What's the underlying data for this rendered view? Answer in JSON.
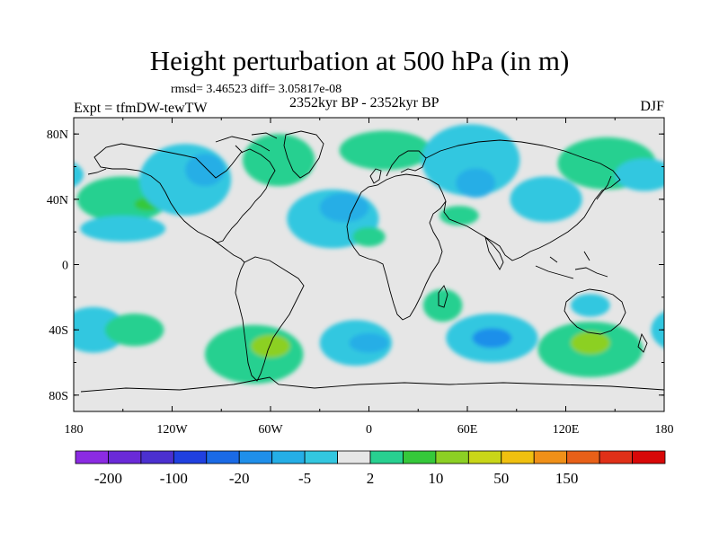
{
  "title": "Height perturbation at 500 hPa (in m)",
  "stats": "rmsd= 3.46523 diff= 3.05817e-08",
  "left_label": "Expt = tfmDW-tewTW",
  "center_label": "2352kyr BP - 2352kyr BP",
  "right_label": "DJF",
  "map": {
    "lat_ticks": [
      {
        "value": 80,
        "label": "80N"
      },
      {
        "value": 40,
        "label": "40N"
      },
      {
        "value": 0,
        "label": "0"
      },
      {
        "value": -40,
        "label": "40S"
      },
      {
        "value": -80,
        "label": "80S"
      }
    ],
    "lon_ticks": [
      {
        "value": -180,
        "label": "180"
      },
      {
        "value": -120,
        "label": "120W"
      },
      {
        "value": -60,
        "label": "60W"
      },
      {
        "value": 0,
        "label": "0"
      },
      {
        "value": 60,
        "label": "60E"
      },
      {
        "value": 120,
        "label": "120E"
      },
      {
        "value": 180,
        "label": "180"
      }
    ],
    "lon_range": [
      -180,
      180
    ],
    "lat_range": [
      -90,
      90
    ],
    "background_color": "#e6e6e6",
    "anomalies": [
      {
        "lon": -150,
        "lat": 40,
        "value": 9,
        "rx": 28,
        "ry": 14
      },
      {
        "lon": -135,
        "lat": 37,
        "value": 25,
        "rx": 8,
        "ry": 4
      },
      {
        "lon": -150,
        "lat": 22,
        "value": -6,
        "rx": 26,
        "ry": 8
      },
      {
        "lon": -112,
        "lat": 52,
        "value": -12,
        "rx": 28,
        "ry": 22
      },
      {
        "lon": -100,
        "lat": 58,
        "value": -25,
        "rx": 12,
        "ry": 10
      },
      {
        "lon": -55,
        "lat": 64,
        "value": 8,
        "rx": 22,
        "ry": 16
      },
      {
        "lon": -22,
        "lat": 28,
        "value": -8,
        "rx": 28,
        "ry": 18
      },
      {
        "lon": -15,
        "lat": 35,
        "value": -22,
        "rx": 15,
        "ry": 9
      },
      {
        "lon": 10,
        "lat": 70,
        "value": 7,
        "rx": 28,
        "ry": 12
      },
      {
        "lon": 62,
        "lat": 64,
        "value": -10,
        "rx": 30,
        "ry": 22
      },
      {
        "lon": 65,
        "lat": 50,
        "value": -25,
        "rx": 12,
        "ry": 9
      },
      {
        "lon": 0,
        "lat": 17,
        "value": 6,
        "rx": 10,
        "ry": 6
      },
      {
        "lon": 55,
        "lat": 30,
        "value": 5,
        "rx": 12,
        "ry": 6
      },
      {
        "lon": 145,
        "lat": 62,
        "value": 6,
        "rx": 30,
        "ry": 16
      },
      {
        "lon": 168,
        "lat": 55,
        "value": -8,
        "rx": 18,
        "ry": 10
      },
      {
        "lon": 108,
        "lat": 40,
        "value": -7,
        "rx": 22,
        "ry": 14
      },
      {
        "lon": -168,
        "lat": -40,
        "value": -7,
        "rx": 20,
        "ry": 14
      },
      {
        "lon": -143,
        "lat": -40,
        "value": 8,
        "rx": 18,
        "ry": 10
      },
      {
        "lon": -70,
        "lat": -55,
        "value": 9,
        "rx": 30,
        "ry": 18
      },
      {
        "lon": -60,
        "lat": -50,
        "value": 30,
        "rx": 12,
        "ry": 7
      },
      {
        "lon": -8,
        "lat": -48,
        "value": -10,
        "rx": 22,
        "ry": 14
      },
      {
        "lon": 0,
        "lat": -48,
        "value": -20,
        "rx": 12,
        "ry": 6
      },
      {
        "lon": 45,
        "lat": -25,
        "value": 6,
        "rx": 12,
        "ry": 10
      },
      {
        "lon": 75,
        "lat": -45,
        "value": -12,
        "rx": 28,
        "ry": 15
      },
      {
        "lon": 75,
        "lat": -45,
        "value": -35,
        "rx": 12,
        "ry": 6
      },
      {
        "lon": 135,
        "lat": -52,
        "value": 10,
        "rx": 32,
        "ry": 17
      },
      {
        "lon": 135,
        "lat": -48,
        "value": 40,
        "rx": 12,
        "ry": 7
      },
      {
        "lon": 135,
        "lat": -25,
        "value": -6,
        "rx": 12,
        "ry": 7
      }
    ]
  },
  "colorbar": {
    "colors": [
      "#8b2be2",
      "#6a2ad8",
      "#4b30d0",
      "#2040e0",
      "#1a6ae6",
      "#1f8fea",
      "#25aee6",
      "#33c7e0",
      "#e6e6e6",
      "#28d090",
      "#35c83a",
      "#8cd024",
      "#c9d618",
      "#f0c010",
      "#f09018",
      "#e86018",
      "#e03018",
      "#d80808"
    ],
    "labels": [
      {
        "index": 1,
        "text": "-200"
      },
      {
        "index": 3,
        "text": "-100"
      },
      {
        "index": 5,
        "text": "-20"
      },
      {
        "index": 7,
        "text": "-5"
      },
      {
        "index": 9,
        "text": "2"
      },
      {
        "index": 11,
        "text": "10"
      },
      {
        "index": 13,
        "text": "50"
      },
      {
        "index": 15,
        "text": "150"
      }
    ]
  }
}
